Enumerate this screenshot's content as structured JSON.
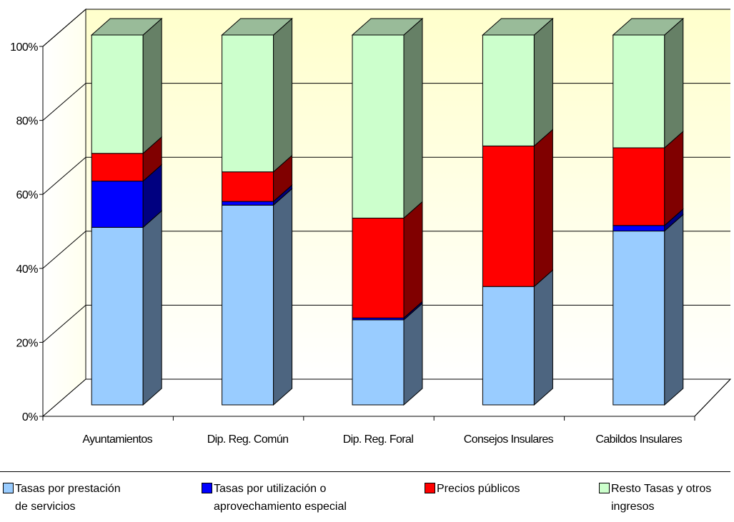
{
  "chart_data": {
    "type": "bar",
    "stacked": true,
    "percent_stacked": true,
    "three_d": true,
    "categories": [
      "Ayuntamientos",
      "Dip. Reg. Común",
      "Dip. Reg. Foral",
      "Consejos Insulares",
      "Cabildos Insulares"
    ],
    "series": [
      {
        "name": "Tasas por prestación\nde servicios",
        "color": "#99ccff",
        "side_color": "#4d6580",
        "top_color": "#9ec0e0",
        "values": [
          48,
          54,
          23,
          32,
          47
        ]
      },
      {
        "name": "Tasas por utilización o\naprovechamiento especial",
        "color": "#0000ff",
        "side_color": "#000080",
        "top_color": "#3333cc",
        "values": [
          12.5,
          1,
          0.5,
          0,
          1.5
        ]
      },
      {
        "name": "Precios públicos",
        "color": "#ff0000",
        "side_color": "#800000",
        "top_color": "#cc3333",
        "values": [
          7.5,
          8,
          27,
          38,
          21
        ]
      },
      {
        "name": "Resto Tasas y otros\ningresos",
        "color": "#ccffcc",
        "side_color": "#668066",
        "top_color": "#99bb99",
        "values": [
          32,
          37,
          49.5,
          30,
          30.5
        ]
      }
    ],
    "y_ticks": [
      "0%",
      "20%",
      "40%",
      "60%",
      "80%",
      "100%"
    ],
    "ylim": [
      0,
      100
    ],
    "grid": true,
    "legend_position": "bottom",
    "wall_color": "#ffffcc"
  }
}
